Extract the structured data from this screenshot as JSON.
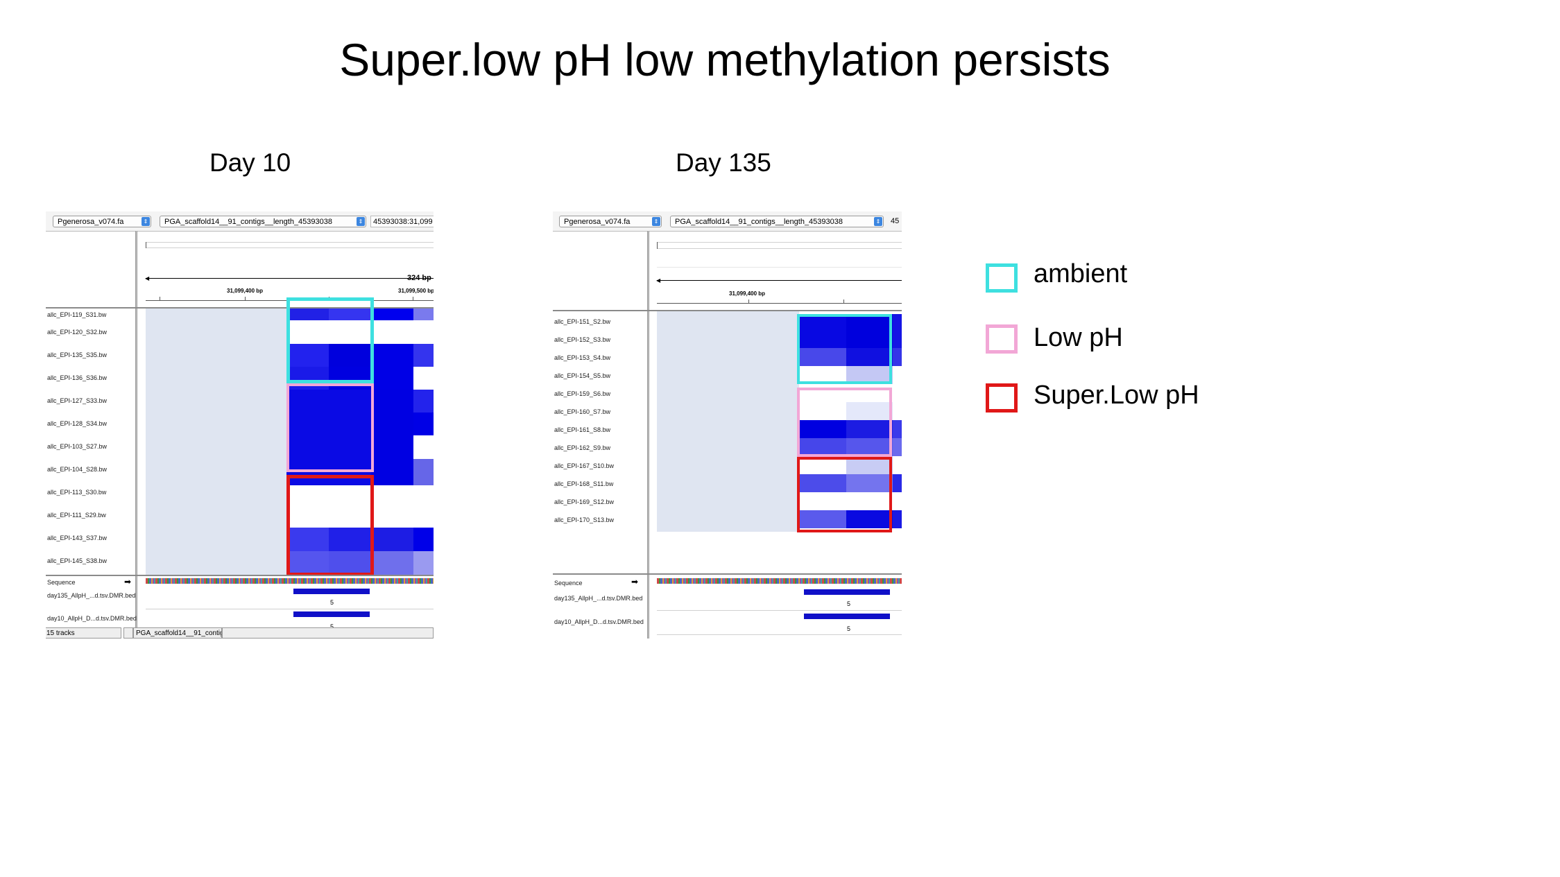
{
  "slide": {
    "title": "Super.low pH low methylation persists"
  },
  "panels": [
    {
      "label": "Day 10",
      "genome": "Pgenerosa_v074.fa",
      "chromosome": "PGA_scaffold14__91_contigs__length_45393038",
      "locus": "45393038:31,099",
      "ruler": {
        "span": "324 bp",
        "ticks": [
          "31,099,400 bp",
          "31,099,500 bp"
        ]
      },
      "tracks": [
        "allc_EPI-119_S31.bw",
        "allc_EPI-120_S32.bw",
        "allc_EPI-135_S35.bw",
        "allc_EPI-136_S36.bw",
        "allc_EPI-127_S33.bw",
        "allc_EPI-128_S34.bw",
        "allc_EPI-103_S27.bw",
        "allc_EPI-104_S28.bw",
        "allc_EPI-113_S30.bw",
        "allc_EPI-111_S29.bw",
        "allc_EPI-143_S37.bw",
        "allc_EPI-145_S38.bw"
      ],
      "sequence_label": "Sequence",
      "bed_tracks": [
        {
          "name": "day135_AllpH_...d.tsv.DMR.bed",
          "score": "5"
        },
        {
          "name": "day10_AllpH_D...d.tsv.DMR.bed",
          "score": "5"
        }
      ],
      "status": {
        "tracks": "15 tracks",
        "locus": "PGA_scaffold14__91_contig..."
      }
    },
    {
      "label": "Day 135",
      "genome": "Pgenerosa_v074.fa",
      "chromosome": "PGA_scaffold14__91_contigs__length_45393038",
      "locus": "45",
      "ruler": {
        "ticks": [
          "31,099,400 bp"
        ]
      },
      "tracks": [
        "allc_EPI-151_S2.bw",
        "allc_EPI-152_S3.bw",
        "allc_EPI-153_S4.bw",
        "allc_EPI-154_S5.bw",
        "allc_EPI-159_S6.bw",
        "allc_EPI-160_S7.bw",
        "allc_EPI-161_S8.bw",
        "allc_EPI-162_S9.bw",
        "allc_EPI-167_S10.bw",
        "allc_EPI-168_S11.bw",
        "allc_EPI-169_S12.bw",
        "allc_EPI-170_S13.bw"
      ],
      "sequence_label": "Sequence",
      "bed_tracks": [
        {
          "name": "day135_AllpH_...d.tsv.DMR.bed",
          "score": "5"
        },
        {
          "name": "day10_AllpH_D...d.tsv.DMR.bed",
          "score": "5"
        }
      ]
    }
  ],
  "legend": [
    {
      "label": "ambient",
      "color": "#3ee0e0"
    },
    {
      "label": "Low pH",
      "color": "#f2a7d6"
    },
    {
      "label": "Super.Low pH",
      "color": "#e01818"
    }
  ]
}
